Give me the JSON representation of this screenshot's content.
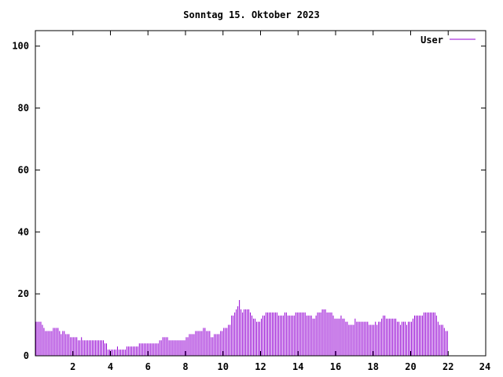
{
  "chart_data": {
    "type": "bar",
    "title": "Sonntag 15. Oktober 2023",
    "xlabel": "",
    "ylabel": "",
    "xlim": [
      0,
      24
    ],
    "ylim": [
      0,
      105
    ],
    "x_ticks": [
      2,
      4,
      6,
      8,
      10,
      12,
      14,
      16,
      18,
      20,
      22,
      24
    ],
    "y_ticks": [
      0,
      20,
      40,
      60,
      80,
      100
    ],
    "grid": false,
    "legend_position": "top-right",
    "series": [
      {
        "name": "User",
        "color": "#9400d3",
        "interval_minutes": 5,
        "values": [
          11,
          11,
          11,
          11,
          10,
          9,
          8,
          8,
          8,
          8,
          8,
          9,
          9,
          9,
          9,
          8,
          7,
          8,
          8,
          7,
          7,
          7,
          6,
          6,
          6,
          6,
          6,
          5,
          5,
          6,
          5,
          5,
          5,
          5,
          5,
          5,
          5,
          5,
          5,
          5,
          5,
          5,
          5,
          5,
          4,
          4,
          2,
          2,
          2,
          2,
          2,
          2,
          3,
          2,
          2,
          2,
          2,
          2,
          3,
          3,
          3,
          3,
          3,
          3,
          3,
          3,
          4,
          4,
          4,
          4,
          4,
          4,
          4,
          4,
          4,
          4,
          4,
          4,
          4,
          5,
          5,
          6,
          6,
          6,
          6,
          5,
          5,
          5,
          5,
          5,
          5,
          5,
          5,
          5,
          5,
          5,
          6,
          6,
          7,
          7,
          7,
          7,
          8,
          8,
          8,
          8,
          8,
          9,
          9,
          8,
          8,
          8,
          6,
          6,
          7,
          7,
          7,
          7,
          8,
          8,
          9,
          9,
          9,
          10,
          10,
          13,
          13,
          14,
          15,
          16,
          18,
          15,
          14,
          15,
          15,
          15,
          15,
          14,
          13,
          12,
          12,
          11,
          11,
          11,
          12,
          13,
          13,
          14,
          14,
          14,
          14,
          14,
          14,
          14,
          14,
          13,
          13,
          13,
          13,
          14,
          14,
          13,
          13,
          13,
          13,
          13,
          14,
          14,
          14,
          14,
          14,
          14,
          14,
          13,
          13,
          13,
          13,
          12,
          12,
          13,
          14,
          14,
          14,
          15,
          15,
          15,
          14,
          14,
          14,
          14,
          13,
          12,
          12,
          12,
          12,
          13,
          12,
          12,
          11,
          11,
          10,
          10,
          10,
          10,
          12,
          11,
          11,
          11,
          11,
          11,
          11,
          11,
          11,
          10,
          10,
          10,
          10,
          11,
          10,
          11,
          11,
          12,
          13,
          13,
          12,
          12,
          12,
          12,
          12,
          12,
          12,
          11,
          11,
          10,
          11,
          11,
          11,
          10,
          11,
          11,
          11,
          12,
          13,
          13,
          13,
          13,
          13,
          13,
          14,
          14,
          14,
          14,
          14,
          14,
          14,
          14,
          13,
          11,
          10,
          10,
          10,
          9,
          8,
          8
        ]
      }
    ]
  }
}
